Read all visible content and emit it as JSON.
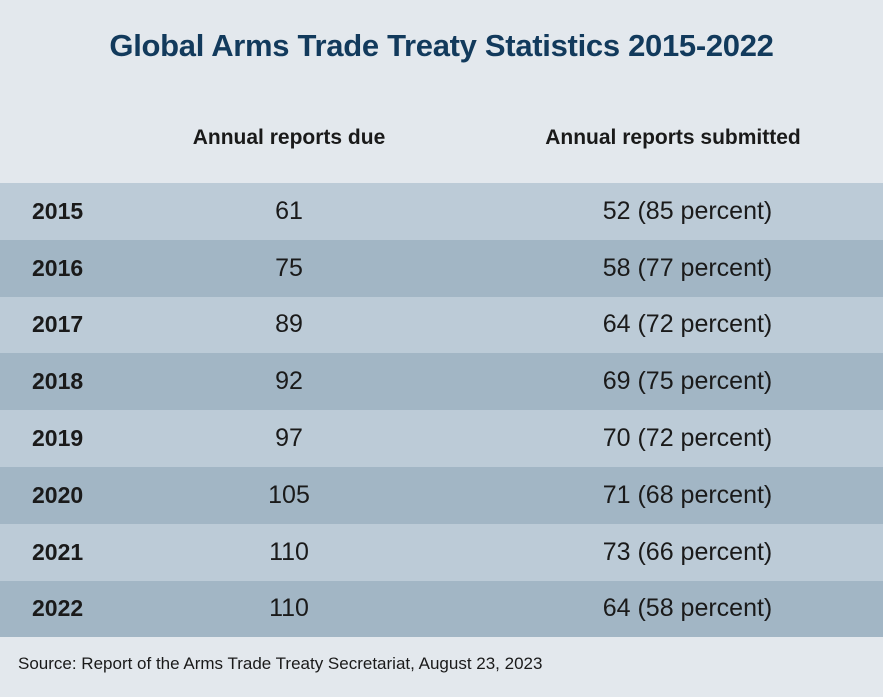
{
  "chart_data": {
    "type": "table",
    "title": "Global Arms Trade Treaty Statistics 2015-2022",
    "columns": [
      "",
      "Annual reports due",
      "Annual reports submitted"
    ],
    "rows": [
      {
        "year": "2015",
        "due": "61",
        "submitted": "52 (85 percent)"
      },
      {
        "year": "2016",
        "due": "75",
        "submitted": "58 (77 percent)"
      },
      {
        "year": "2017",
        "due": "89",
        "submitted": "64 (72 percent)"
      },
      {
        "year": "2018",
        "due": "92",
        "submitted": "69 (75 percent)"
      },
      {
        "year": "2019",
        "due": "97",
        "submitted": "70 (72 percent)"
      },
      {
        "year": "2020",
        "due": "105",
        "submitted": "71 (68 percent)"
      },
      {
        "year": "2021",
        "due": "110",
        "submitted": "73 (66 percent)"
      },
      {
        "year": "2022",
        "due": "110",
        "submitted": "64 (58 percent)"
      }
    ],
    "source": "Source: Report of the Arms Trade Treaty Secretariat, August 23, 2023"
  },
  "colors": {
    "title": "#123a5c",
    "background": "#e3e8ed",
    "row_light": "#bccbd7",
    "row_dark": "#a2b6c5"
  }
}
